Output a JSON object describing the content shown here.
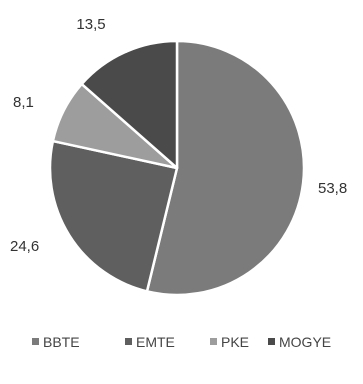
{
  "chart_data": {
    "type": "pie",
    "categories": [
      "BBTE",
      "EMTE",
      "PKE",
      "MOGYE"
    ],
    "values": [
      53.8,
      24.6,
      8.1,
      13.5
    ],
    "data_labels": [
      "53,8",
      "24,6",
      "8,1",
      "13,5"
    ],
    "colors": [
      "#7b7b7b",
      "#5f5f5f",
      "#9d9d9d",
      "#4a4a4a"
    ],
    "legend_position": "bottom",
    "start_angle": "top, clockwise"
  }
}
